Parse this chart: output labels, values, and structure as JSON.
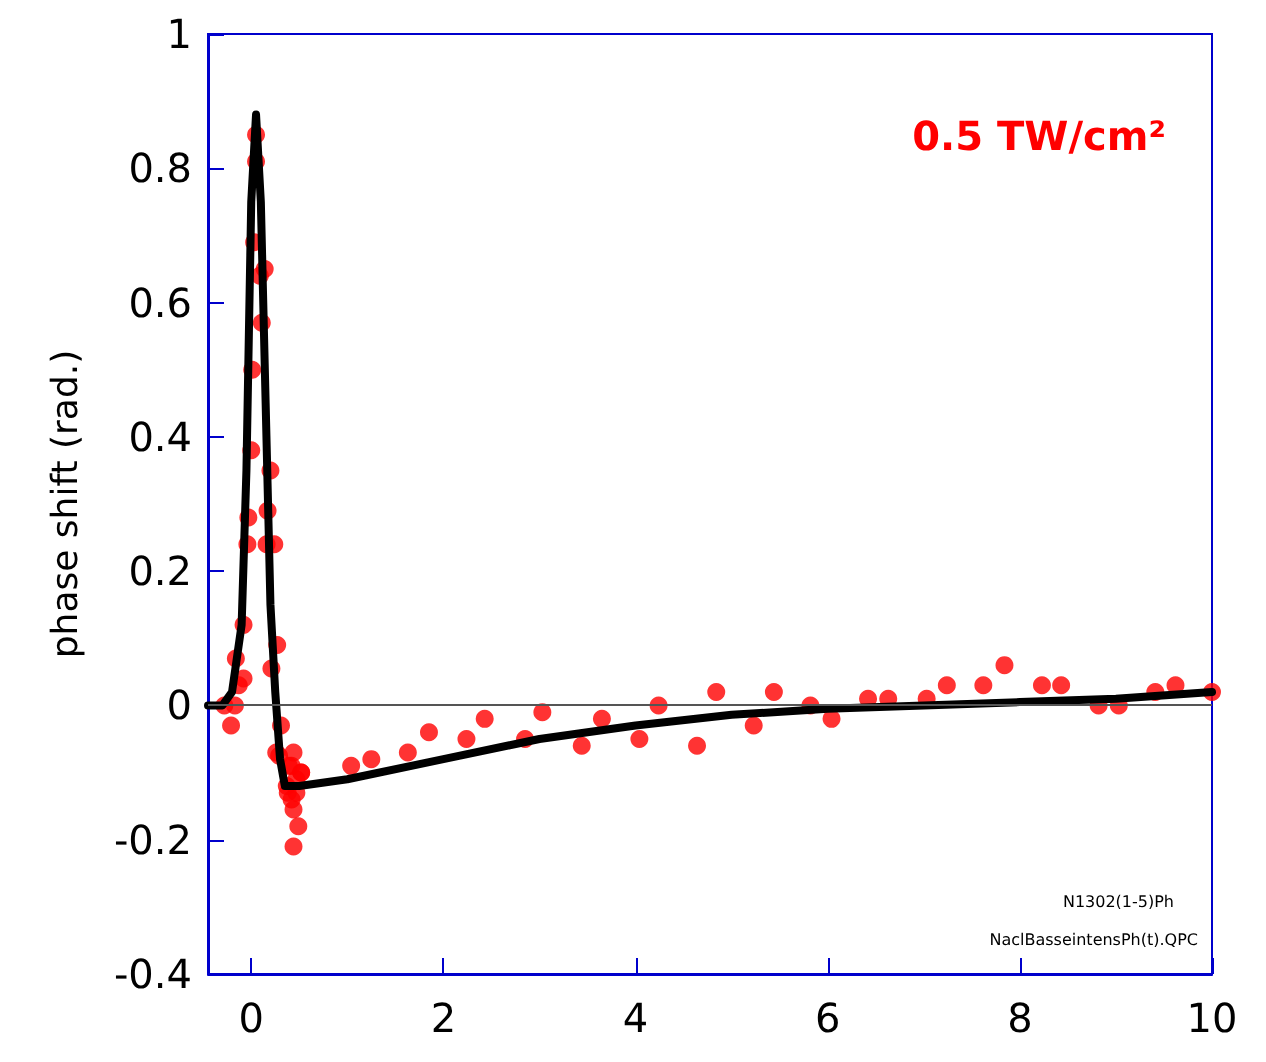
{
  "chart_data": {
    "type": "scatter",
    "ylabel": "phase shift (rad.)",
    "annotations": [
      "0.5 TW/cm²",
      "N1302(1-5)Ph",
      "NaclBasseintensPh(t).QPC"
    ],
    "xlim": [
      -0.45,
      10
    ],
    "xticks": [
      0,
      2,
      4,
      6,
      8,
      10
    ],
    "ylim": [
      -0.4,
      1
    ],
    "yticks": [
      -0.4,
      -0.2,
      0,
      0.2,
      0.4,
      0.6,
      0.8,
      1
    ],
    "grid": false,
    "ref_lines": [
      {
        "axis": "y",
        "value": 0,
        "color": "#555555"
      }
    ],
    "series": [
      {
        "color": "#ff0000",
        "marker": "circle",
        "x": [
          0.05,
          0.05,
          0.03,
          0.09,
          0.14,
          0.11,
          0.01,
          0.0,
          0.2,
          -0.03,
          0.17,
          -0.04,
          0.16,
          0.24,
          -0.08,
          0.27,
          -0.16,
          0.21,
          -0.08,
          -0.13,
          -0.28,
          -0.17,
          -0.21,
          0.31,
          0.42,
          0.26,
          0.29,
          0.37,
          0.42,
          0.38,
          0.44,
          0.49,
          0.44,
          0.47,
          0.47,
          0.39,
          0.44,
          0.52,
          0.52,
          1.04,
          1.25,
          1.63,
          1.85,
          2.24,
          2.43,
          2.85,
          3.03,
          3.44,
          3.65,
          4.04,
          4.24,
          4.64,
          4.84,
          5.23,
          5.44,
          5.82,
          6.04,
          6.42,
          6.63,
          7.03,
          7.24,
          7.62,
          7.84,
          8.23,
          8.43,
          8.82,
          9.03,
          9.41,
          9.62,
          10.0
        ],
        "values": [
          0.85,
          0.81,
          0.69,
          0.64,
          0.65,
          0.57,
          0.5,
          0.38,
          0.35,
          0.28,
          0.29,
          0.24,
          0.24,
          0.24,
          0.12,
          0.09,
          0.07,
          0.055,
          0.04,
          0.03,
          0.0,
          0.0,
          -0.03,
          -0.03,
          -0.09,
          -0.07,
          -0.075,
          -0.12,
          -0.14,
          -0.13,
          -0.155,
          -0.18,
          -0.21,
          -0.11,
          -0.13,
          -0.09,
          -0.07,
          -0.1,
          -0.1,
          -0.09,
          -0.08,
          -0.07,
          -0.04,
          -0.05,
          -0.02,
          -0.05,
          -0.01,
          -0.06,
          -0.02,
          -0.05,
          0.0,
          -0.06,
          0.02,
          -0.03,
          0.02,
          0.0,
          -0.02,
          0.01,
          0.01,
          0.01,
          0.03,
          0.03,
          0.06,
          0.03,
          0.03,
          0.0,
          0.0,
          0.02,
          0.03,
          0.02
        ]
      },
      {
        "type": "line",
        "color": "#000000",
        "marker": "none",
        "line_style": "solid",
        "x": [
          -0.45,
          -0.3,
          -0.2,
          -0.1,
          -0.05,
          0,
          0.05,
          0.1,
          0.15,
          0.2,
          0.25,
          0.3,
          0.35,
          0.5,
          1,
          2,
          3,
          4,
          5,
          6,
          7,
          8,
          9,
          10
        ],
        "values": [
          0,
          0,
          0.02,
          0.12,
          0.35,
          0.75,
          0.88,
          0.75,
          0.45,
          0.15,
          0.02,
          -0.08,
          -0.12,
          -0.12,
          -0.11,
          -0.08,
          -0.05,
          -0.03,
          -0.014,
          -0.005,
          0,
          0.005,
          0.01,
          0.02
        ]
      }
    ]
  }
}
